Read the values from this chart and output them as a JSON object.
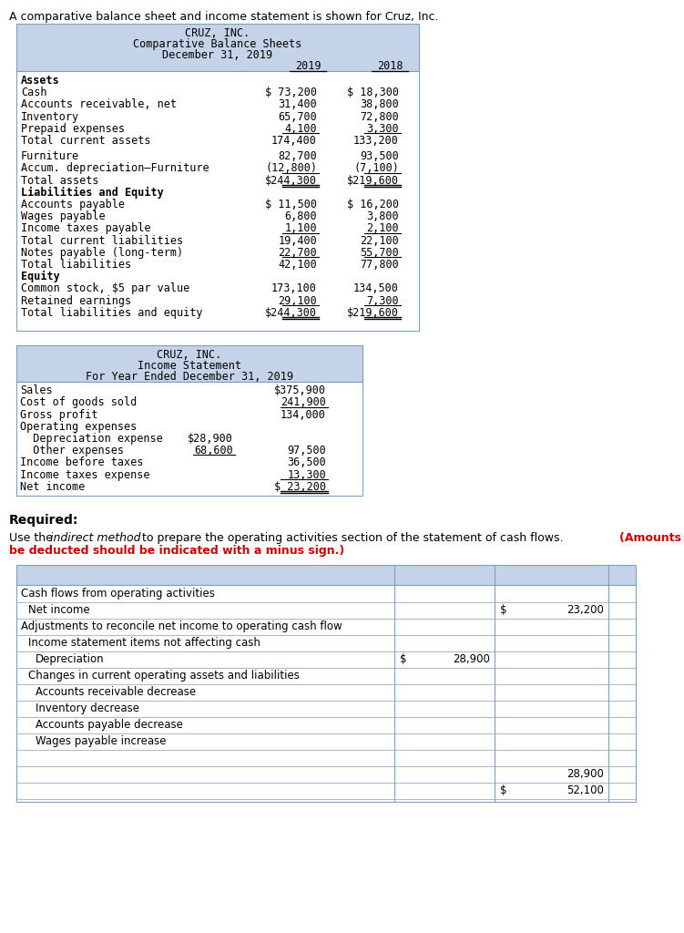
{
  "intro_text": "A comparative balance sheet and income statement is shown for Cruz, Inc.",
  "bs_title": [
    "CRUZ, INC.",
    "Comparative Balance Sheets",
    "December 31, 2019"
  ],
  "is_title": [
    "CRUZ, INC.",
    "Income Statement",
    "For Year Ended December 31, 2019"
  ],
  "asset_rows": [
    [
      "Cash",
      "$ 73,200",
      "$ 18,300",
      false,
      false,
      false
    ],
    [
      "Accounts receivable, net",
      "31,400",
      "38,800",
      false,
      false,
      false
    ],
    [
      "Inventory",
      "65,700",
      "72,800",
      false,
      false,
      false
    ],
    [
      "Prepaid expenses",
      "4,100",
      "3,300",
      true,
      false,
      false
    ],
    [
      "Total current assets",
      "174,400",
      "133,200",
      false,
      false,
      true
    ],
    [
      "Furniture",
      "82,700",
      "93,500",
      false,
      false,
      false
    ],
    [
      "Accum. depreciation–Furniture",
      "(12,800)",
      "(7,100)",
      true,
      false,
      false
    ],
    [
      "Total assets",
      "$244,300",
      "$219,600",
      false,
      true,
      false
    ]
  ],
  "liab_rows": [
    [
      "Accounts payable",
      "$ 11,500",
      "$ 16,200",
      false,
      false
    ],
    [
      "Wages payable",
      "6,800",
      "3,800",
      false,
      false
    ],
    [
      "Income taxes payable",
      "1,100",
      "2,100",
      true,
      false
    ],
    [
      "Total current liabilities",
      "19,400",
      "22,100",
      false,
      false
    ],
    [
      "Notes payable (long-term)",
      "22,700",
      "55,700",
      true,
      false
    ],
    [
      "Total liabilities",
      "42,100",
      "77,800",
      false,
      false
    ]
  ],
  "equity_rows": [
    [
      "Common stock, $5 par value",
      "173,100",
      "134,500",
      false,
      false
    ],
    [
      "Retained earnings",
      "29,100",
      "7,300",
      true,
      false
    ],
    [
      "Total liabilities and equity",
      "$244,300",
      "$219,600",
      false,
      true
    ]
  ],
  "is_rows": [
    [
      "Sales",
      "",
      "$375,900",
      false,
      false,
      false,
      false
    ],
    [
      "Cost of goods sold",
      "",
      "241,900",
      false,
      true,
      false,
      false
    ],
    [
      "Gross profit",
      "",
      "134,000",
      false,
      false,
      false,
      false
    ],
    [
      "Operating expenses",
      "",
      "",
      false,
      false,
      false,
      false
    ],
    [
      "  Depreciation expense",
      "$28,900",
      "",
      false,
      false,
      false,
      false
    ],
    [
      "  Other expenses",
      "68,600",
      "97,500",
      true,
      false,
      false,
      false
    ],
    [
      "Income before taxes",
      "",
      "36,500",
      false,
      false,
      false,
      false
    ],
    [
      "Income taxes expense",
      "",
      "13,300",
      false,
      true,
      false,
      false
    ],
    [
      "Net income",
      "",
      "$ 23,200",
      false,
      false,
      false,
      true
    ]
  ],
  "cf_rows": [
    [
      "Cash flows from operating activities",
      0,
      "",
      "",
      "",
      ""
    ],
    [
      "Net income",
      1,
      "",
      "",
      "$",
      "23,200"
    ],
    [
      "Adjustments to reconcile net income to operating cash flow",
      0,
      "",
      "",
      "",
      ""
    ],
    [
      "Income statement items not affecting cash",
      1,
      "",
      "",
      "",
      ""
    ],
    [
      "Depreciation",
      2,
      "$",
      "28,900",
      "",
      ""
    ],
    [
      "Changes in current operating assets and liabilities",
      1,
      "",
      "",
      "",
      ""
    ],
    [
      "Accounts receivable decrease",
      2,
      "",
      "",
      "",
      ""
    ],
    [
      "Inventory decrease",
      2,
      "",
      "",
      "",
      ""
    ],
    [
      "Accounts payable decrease",
      2,
      "",
      "",
      "",
      ""
    ],
    [
      "Wages payable increase",
      2,
      "",
      "",
      "",
      ""
    ],
    [
      "",
      0,
      "",
      "",
      "",
      ""
    ],
    [
      "",
      0,
      "",
      "",
      "",
      "28,900"
    ],
    [
      "",
      0,
      "",
      "",
      "$",
      "52,100"
    ]
  ],
  "bg_header": "#c5d3e8",
  "bg_white": "#ffffff",
  "border": "#7f9fbe",
  "red": "#cc0000"
}
